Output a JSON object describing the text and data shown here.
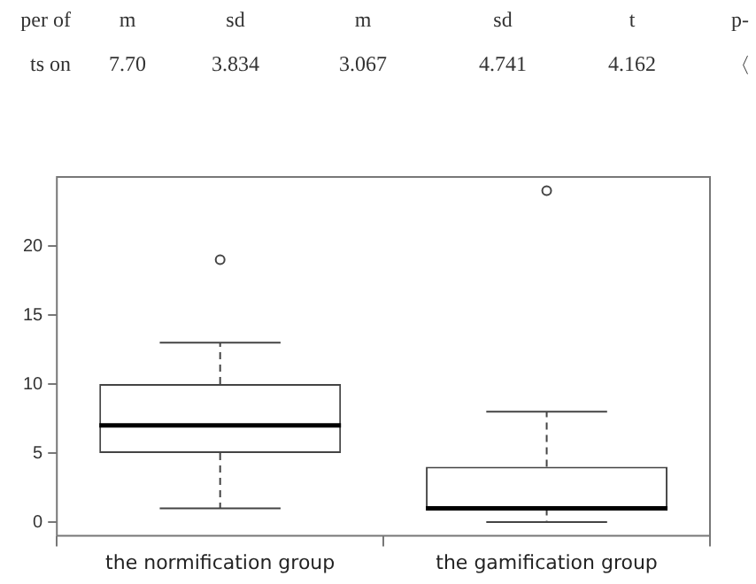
{
  "chart_data": {
    "type": "box",
    "categories": [
      "the normification group",
      "the gamification group"
    ],
    "boxes": [
      {
        "low": 1,
        "q1": 5,
        "median": 7,
        "q3": 10,
        "high": 13,
        "outliers": [
          19
        ]
      },
      {
        "low": 0,
        "q1": 1,
        "median": 1,
        "q3": 4,
        "high": 8,
        "outliers": [
          24
        ]
      }
    ],
    "ylim": [
      -1,
      25
    ],
    "yticks": [
      0,
      5,
      10,
      15,
      20
    ],
    "annotations": [
      "per of",
      "m",
      "sd",
      "m",
      "sd",
      "t",
      "p-",
      "ts on",
      "7.70",
      "3.834",
      "3.067",
      "4.741",
      "4.162",
      "〈"
    ]
  }
}
